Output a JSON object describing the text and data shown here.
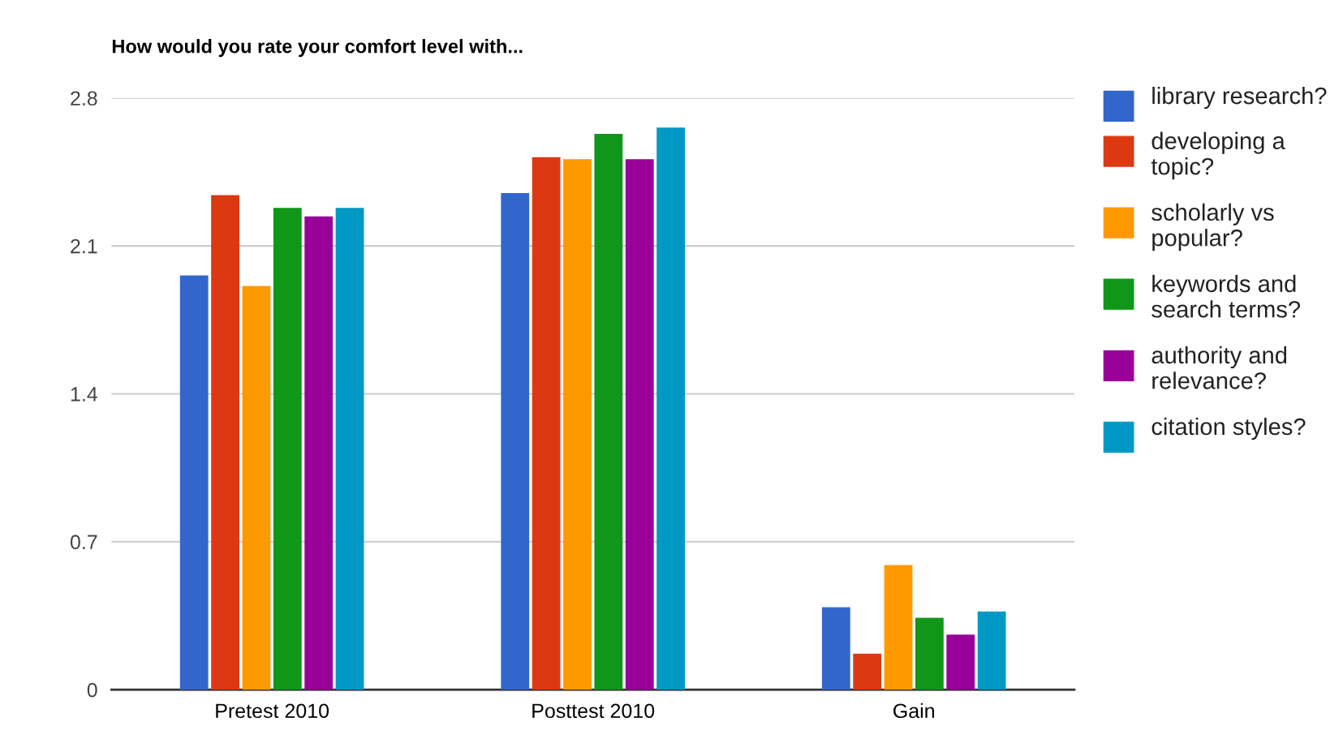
{
  "chart_data": {
    "type": "bar",
    "title": "How would you rate your comfort level with...",
    "categories": [
      "Pretest 2010",
      "Posttest 2010",
      "Gain"
    ],
    "series": [
      {
        "name": "library research?",
        "color": "#3366cc",
        "values": [
          1.96,
          2.35,
          0.39
        ]
      },
      {
        "name": "developing a topic?",
        "color": "#dc3912",
        "values": [
          2.34,
          2.52,
          0.17
        ]
      },
      {
        "name": "scholarly vs popular?",
        "color": "#ff9900",
        "values": [
          1.91,
          2.51,
          0.59
        ]
      },
      {
        "name": "keywords and search terms?",
        "color": "#109618",
        "values": [
          2.28,
          2.63,
          0.34
        ]
      },
      {
        "name": "authority and relevance?",
        "color": "#990099",
        "values": [
          2.24,
          2.51,
          0.26
        ]
      },
      {
        "name": "citation styles?",
        "color": "#0099c6",
        "values": [
          2.28,
          2.66,
          0.37
        ]
      }
    ],
    "ylim": [
      0,
      2.8
    ],
    "yticks": [
      0,
      0.7,
      1.4,
      2.1,
      2.8
    ],
    "grid": "y",
    "legend": "right"
  }
}
